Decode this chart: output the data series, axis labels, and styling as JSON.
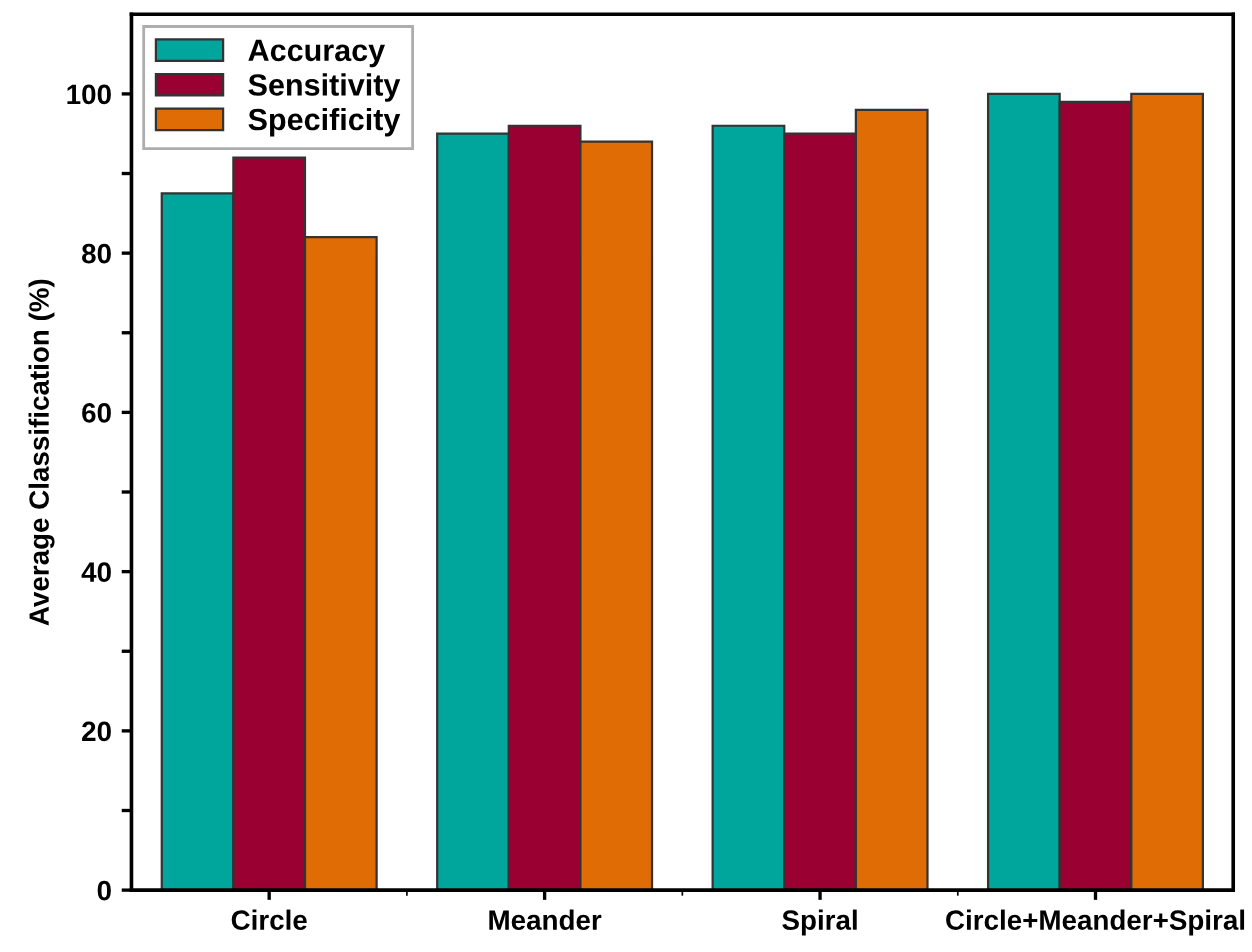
{
  "chart_data": {
    "type": "bar",
    "ylabel": "Average Classification (%)",
    "categories": [
      "Circle",
      "Meander",
      "Spiral",
      "Circle+Meander+Spiral"
    ],
    "series": [
      {
        "name": "Accuracy",
        "color": "#00a59b",
        "values": [
          87.5,
          95,
          96,
          100
        ]
      },
      {
        "name": "Sensitivity",
        "color": "#9b0033",
        "values": [
          92,
          96,
          95,
          99
        ]
      },
      {
        "name": "Specificity",
        "color": "#e06c06",
        "values": [
          82,
          94,
          98,
          100
        ]
      }
    ],
    "ylim": [
      0,
      110
    ],
    "yticks": [
      0,
      {
        "value": 10,
        "label": null
      },
      20,
      {
        "value": 30,
        "label": null
      },
      40,
      {
        "value": 50,
        "label": null
      },
      60,
      {
        "value": 70,
        "label": null
      },
      80,
      {
        "value": 90,
        "label": null
      },
      100
    ],
    "grid": false,
    "legend": "top left"
  }
}
